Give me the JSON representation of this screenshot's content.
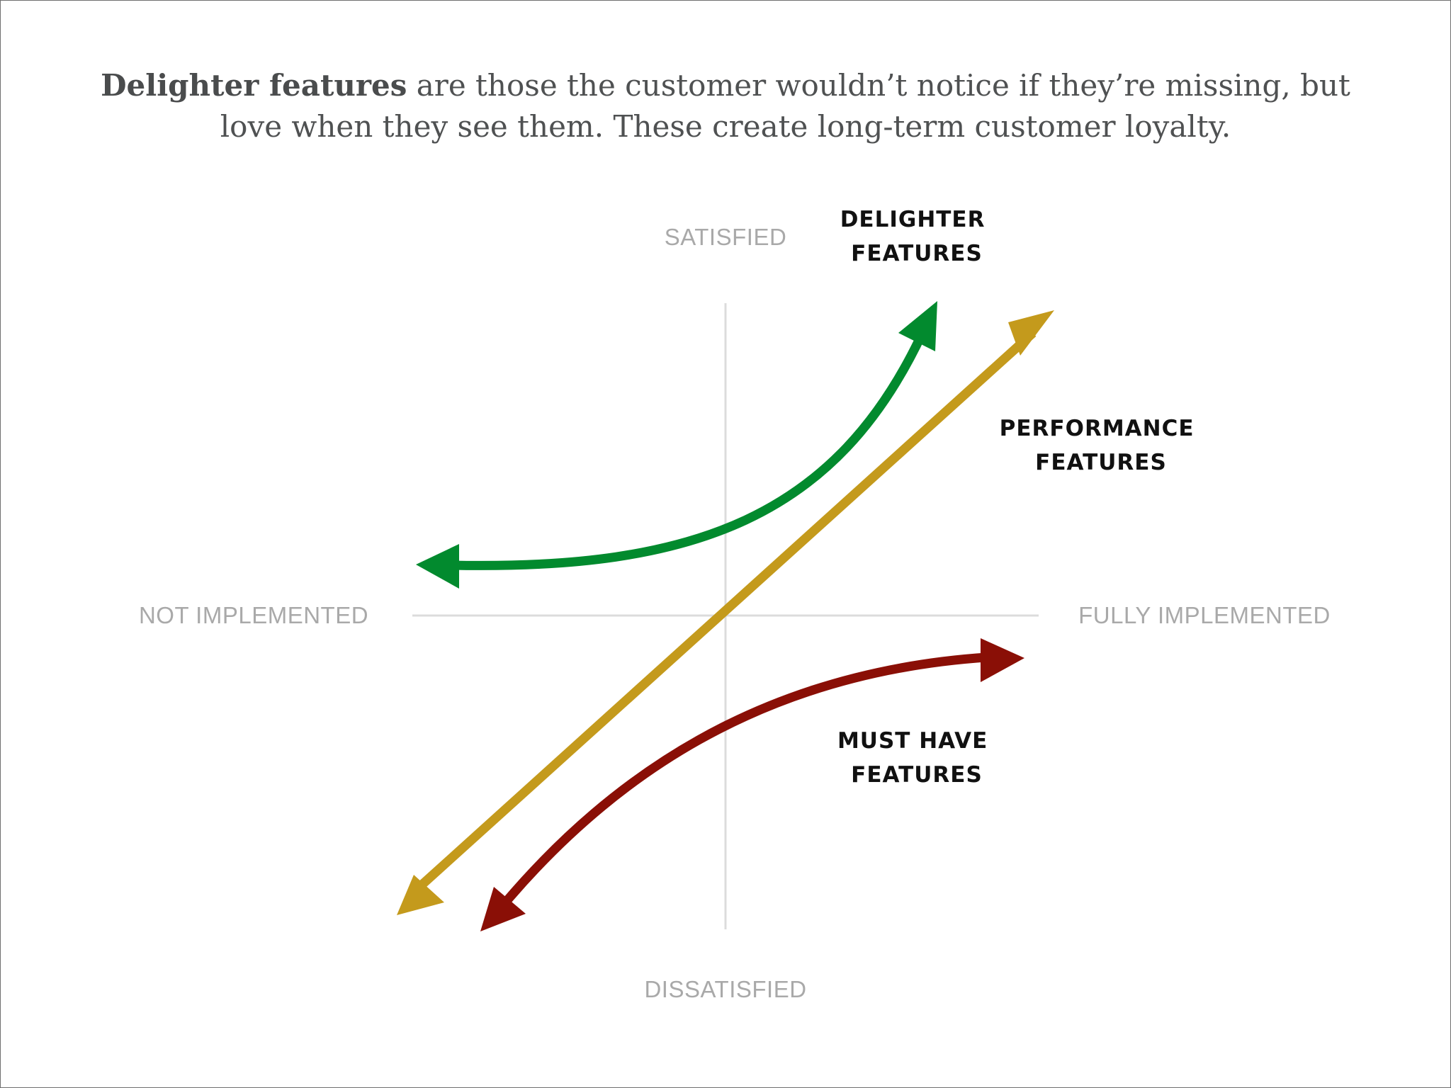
{
  "caption": {
    "bold": "Delighter features",
    "rest": " are those the customer wouldn’t notice if they’re missing, but love when they see them. These create long-term customer loyalty."
  },
  "axes": {
    "top": "SATISFIED",
    "bottom": "DISSATISFIED",
    "left": "NOT IMPLEMENTED",
    "right": "FULLY IMPLEMENTED"
  },
  "features": {
    "delighter": {
      "line1": "DELIGHTER",
      "line2": "FEATURES",
      "color": "#028a2e"
    },
    "performance": {
      "line1": "PERFORMANCE",
      "line2": "FEATURES",
      "color": "#c49a1c"
    },
    "must_have": {
      "line1": "MUST HAVE",
      "line2": "FEATURES",
      "color": "#8a0f06"
    }
  },
  "axis_color": "#dcdcdc"
}
